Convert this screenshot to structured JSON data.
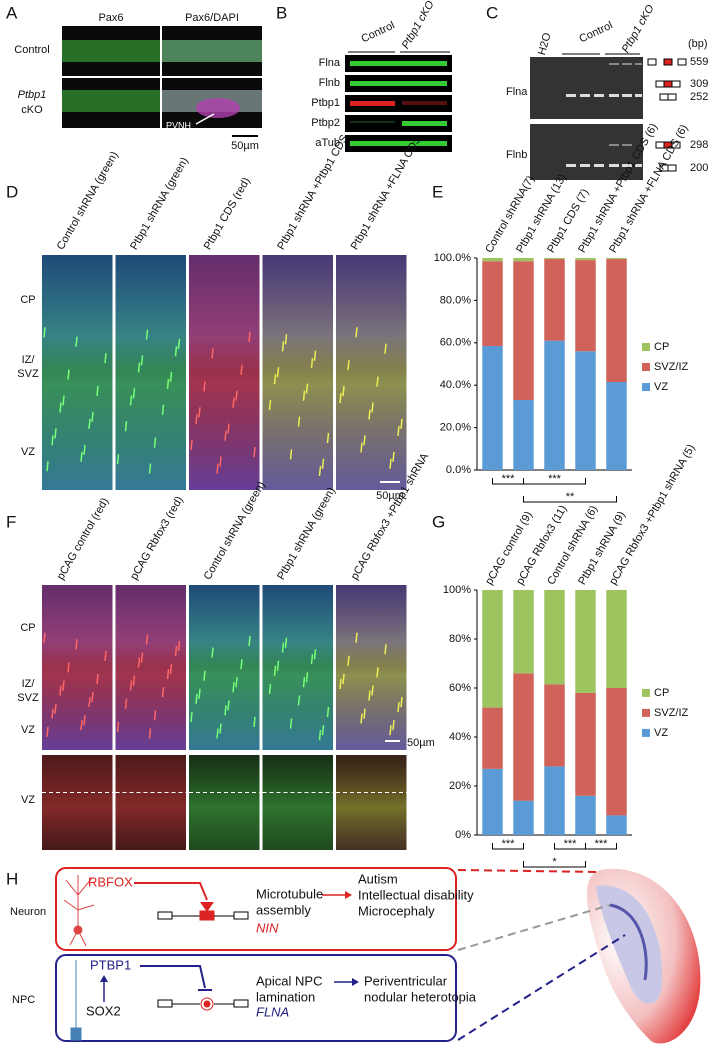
{
  "panels": {
    "A": {
      "label": "A",
      "columns": [
        "Pax6",
        "Pax6/DAPI"
      ],
      "rows": [
        "Control",
        "Ptbp1",
        "cKO"
      ],
      "arrow_label": "PVNH",
      "scale": "50µm"
    },
    "B": {
      "label": "B",
      "columns": [
        "Control",
        "Ptbp1 cKO"
      ],
      "rows": [
        "Flna",
        "Flnb",
        "Ptbp1",
        "Ptbp2",
        "aTub"
      ]
    },
    "C": {
      "label": "C",
      "columns": [
        "H2O",
        "Control",
        "Ptbp1 cKO"
      ],
      "unit": "(bp)",
      "rows": [
        "Flna",
        "Flnb"
      ],
      "sizes": [
        "559",
        "309",
        "252",
        "298",
        "200"
      ]
    },
    "D": {
      "label": "D",
      "columns": [
        "Control shRNA (green)",
        "Ptbp1 shRNA (green)",
        "Ptbp1 CDS (red)",
        "Ptbp1 shRNA +Ptbp1 CDS",
        "Ptbp1 shRNA +FLNA CDS"
      ],
      "layers": [
        "CP",
        "IZ/",
        "SVZ",
        "VZ"
      ],
      "scale": "50µm"
    },
    "E": {
      "label": "E"
    },
    "F": {
      "label": "F",
      "columns": [
        "pCAG control (red)",
        "pCAG Rbfox3 (red)",
        "Control shRNA (green)",
        "Ptbp1 shRNA (green)",
        "pCAG Rbfox3 +Ptbp1 shRNA"
      ],
      "layers": [
        "CP",
        "IZ/",
        "SVZ",
        "VZ",
        "VZ"
      ],
      "scale": "50µm"
    },
    "G": {
      "label": "G"
    },
    "H": {
      "label": "H",
      "neuron": "Neuron",
      "npc": "NPC",
      "rbfox": "RBFOX",
      "nin": "NIN",
      "microtubule": [
        "Microtubule",
        "assembly"
      ],
      "diseases1": [
        "Autism",
        "Intellectual disability",
        "Microcephaly"
      ],
      "ptbp1": "PTBP1",
      "sox2": "SOX2",
      "flna": "FLNA",
      "apical": [
        "Apical NPC",
        "lamination"
      ],
      "diseases2": [
        "Periventricular",
        "nodular heterotopia"
      ]
    }
  },
  "chart_data": [
    {
      "type": "bar",
      "stacked": true,
      "categories": [
        "Control shRNA(7)",
        "Ptbp1 shRNA (13)",
        "Ptbp1 CDS (7)",
        "Ptbp1 shRNA +Ptbp1 CDS (6)",
        "Ptbp1 shRNA +FLNA CDS (6)"
      ],
      "series": [
        {
          "name": "VZ",
          "color": "#5b9bd5",
          "values": [
            58.5,
            33,
            61,
            56,
            41.5
          ]
        },
        {
          "name": "SVZ/IZ",
          "color": "#d0625a",
          "values": [
            40,
            65.5,
            38.5,
            43,
            58
          ]
        },
        {
          "name": "CP",
          "color": "#9dc45f",
          "values": [
            1.5,
            1.5,
            0.5,
            1,
            0.5
          ]
        }
      ],
      "ylim": [
        0,
        100
      ],
      "yticks": [
        {
          "value": 0,
          "label": "0.0%"
        },
        {
          "value": 20,
          "label": "20.0%"
        },
        {
          "value": 40,
          "label": "40.0%"
        },
        {
          "value": 60,
          "label": "60.0%"
        },
        {
          "value": 80,
          "label": "80.0%"
        },
        {
          "value": 100,
          "label": "100.0%"
        }
      ],
      "annotations": [
        "***",
        "***",
        "**"
      ]
    },
    {
      "type": "bar",
      "stacked": true,
      "categories": [
        "pCAG control (9)",
        "pCAG Rbfox3 (11)",
        "Control shRNA (6)",
        "Ptbp1 shRNA (9)",
        "pCAG Rbfox3 +Ptbp1 shRNA (5)"
      ],
      "series": [
        {
          "name": "VZ",
          "color": "#5b9bd5",
          "values": [
            27,
            14,
            28,
            16,
            8
          ]
        },
        {
          "name": "SVZ/IZ",
          "color": "#d0625a",
          "values": [
            25,
            52,
            33.5,
            42,
            52
          ]
        },
        {
          "name": "CP",
          "color": "#9dc45f",
          "values": [
            48,
            34,
            38.5,
            42,
            40
          ]
        }
      ],
      "ylim": [
        0,
        100
      ],
      "yticks": [
        {
          "value": 0,
          "label": "0%"
        },
        {
          "value": 20,
          "label": "20%"
        },
        {
          "value": 40,
          "label": "40%"
        },
        {
          "value": 60,
          "label": "60%"
        },
        {
          "value": 80,
          "label": "80%"
        },
        {
          "value": 100,
          "label": "100%"
        }
      ],
      "annotations": [
        "***",
        "***",
        "***",
        "*"
      ]
    }
  ]
}
